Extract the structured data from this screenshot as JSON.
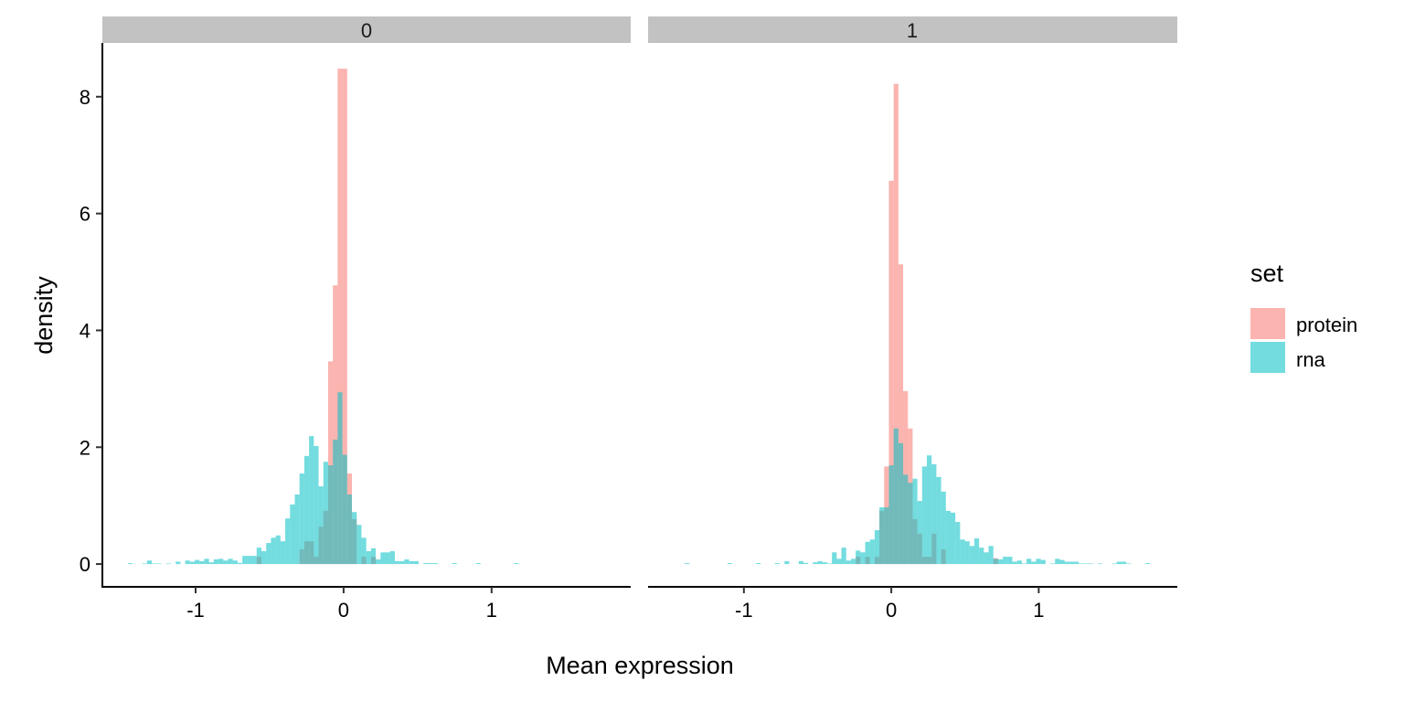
{
  "chart_data": {
    "type": "histogram",
    "xlabel": "Mean expression",
    "ylabel": "density",
    "ylim": [
      -0.39,
      8.92
    ],
    "y_ticks": [
      0,
      2,
      4,
      6,
      8
    ],
    "x_ticks": [
      -1,
      0,
      1
    ],
    "binwidth": 0.0322,
    "legend": {
      "title": "set",
      "placement": "right",
      "entries": [
        "protein",
        "rna"
      ]
    },
    "colors": {
      "protein": "#F8766D",
      "rna": "#00BFC4",
      "strip": "#C2C2C2"
    },
    "facets": [
      {
        "label": "0",
        "xlim": [
          -1.63,
          1.94
        ],
        "series": [
          {
            "name": "protein",
            "start": -1.457,
            "density": [
              0,
              0,
              0,
              0,
              0,
              0,
              0,
              0,
              0,
              0,
              0,
              0,
              0,
              0,
              0,
              0,
              0,
              0,
              0,
              0,
              0,
              0,
              0,
              0,
              0,
              0,
              0,
              0.125,
              0,
              0,
              0,
              0,
              0,
              0,
              0,
              0,
              0.25,
              0.39,
              0.39,
              0.125,
              0.64,
              0.91,
              3.47,
              4.77,
              8.48,
              8.48,
              1.55,
              0.77,
              0,
              0.125,
              0,
              0.125
            ]
          },
          {
            "name": "rna",
            "start": -1.457,
            "density": [
              0.016,
              0,
              0,
              0.01,
              0.06,
              0.01,
              0.01,
              0,
              0.01,
              0,
              0.04,
              0,
              0.06,
              0.04,
              0.07,
              0.05,
              0.09,
              0.03,
              0.08,
              0.09,
              0.06,
              0.09,
              0.06,
              0.02,
              0.14,
              0.14,
              0.14,
              0.28,
              0.22,
              0.36,
              0.45,
              0.49,
              0.39,
              0.78,
              1.02,
              1.19,
              1.55,
              1.85,
              2.19,
              2.02,
              1.33,
              1.75,
              1.69,
              2.13,
              2.94,
              1.87,
              1.19,
              0.89,
              0.67,
              0.45,
              0.22,
              0.27,
              0.08,
              0.2,
              0.2,
              0.22,
              0.05,
              0.05,
              0.08,
              0.05,
              0.05,
              0,
              0.016,
              0.016,
              0.016,
              0,
              0,
              0,
              0.016,
              0,
              0,
              0,
              0,
              0.016,
              0,
              0,
              0,
              0,
              0,
              0,
              0,
              0.016
            ]
          }
        ]
      },
      {
        "label": "1",
        "xlim": [
          -1.65,
          1.94
        ],
        "series": [
          {
            "name": "protein",
            "start": -1.401,
            "density": [
              0,
              0,
              0,
              0,
              0,
              0,
              0,
              0,
              0,
              0,
              0,
              0,
              0,
              0,
              0,
              0,
              0,
              0,
              0,
              0,
              0,
              0,
              0,
              0,
              0,
              0,
              0,
              0,
              0,
              0,
              0,
              0,
              0,
              0,
              0,
              0,
              0.125,
              0,
              0.125,
              0,
              0.125,
              0.91,
              1.67,
              6.56,
              8.22,
              5.13,
              2.96,
              2.32,
              0.77,
              0.52,
              0.125,
              0.125,
              0.52,
              0,
              0.25,
              0,
              0,
              0,
              0,
              0,
              0,
              0,
              0,
              0,
              0,
              0.1
            ]
          },
          {
            "name": "rna",
            "start": -1.401,
            "density": [
              0.016,
              0,
              0,
              0,
              0,
              0,
              0,
              0,
              0,
              0.016,
              0,
              0,
              0,
              0,
              0,
              0.016,
              0,
              0,
              0,
              0.016,
              0,
              0.05,
              0,
              0,
              0.05,
              0.02,
              0,
              0.03,
              0.05,
              0.03,
              0.01,
              0.2,
              0.09,
              0.28,
              0.06,
              0.09,
              0.23,
              0.2,
              0.38,
              0.42,
              0.58,
              0.97,
              0.97,
              1.69,
              2.32,
              2.07,
              1.53,
              1.39,
              1.46,
              1.08,
              1.67,
              1.86,
              1.71,
              1.49,
              1.24,
              0.91,
              0.88,
              0.72,
              0.42,
              0.39,
              0.31,
              0.44,
              0.28,
              0.2,
              0.31,
              0.09,
              0.08,
              0.125,
              0.125,
              0.04,
              0.06,
              0.01,
              0.09,
              0.04,
              0.09,
              0.07,
              0,
              0.01,
              0.09,
              0.07,
              0.04,
              0.04,
              0.04,
              0.01,
              0.01,
              0.01,
              0,
              0.01,
              0,
              0,
              0.01,
              0.04,
              0.04,
              0.01,
              0,
              0,
              0,
              0.016
            ]
          }
        ]
      }
    ]
  }
}
